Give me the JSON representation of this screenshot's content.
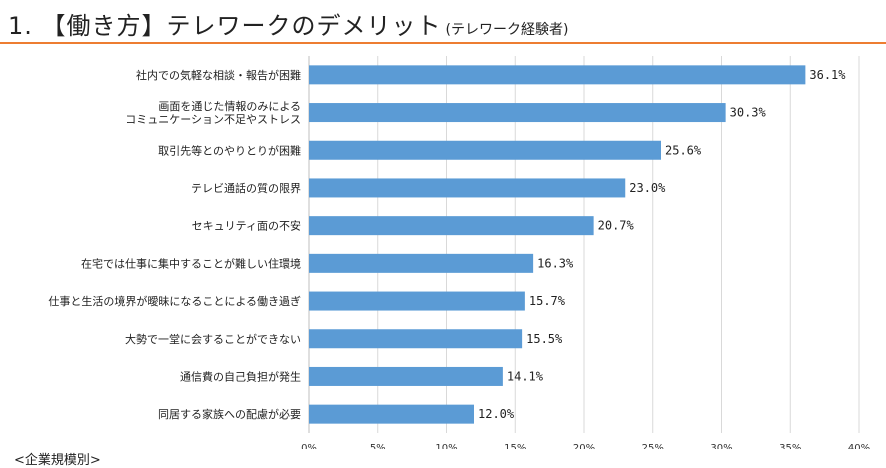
{
  "header": {
    "title": "1. 【働き方】テレワークのデメリット",
    "subtitle": "(テレワーク経験者)",
    "rule_color": "#ed7d31"
  },
  "footer": {
    "note": "<企業規模別>"
  },
  "chart_data": {
    "type": "bar",
    "orientation": "horizontal",
    "title": "",
    "xlabel": "",
    "ylabel": "",
    "xlim": [
      0,
      40
    ],
    "x_ticks": [
      0,
      5,
      10,
      15,
      20,
      25,
      30,
      35,
      40
    ],
    "x_tick_labels": [
      "0%",
      "5%",
      "10%",
      "15%",
      "20%",
      "25%",
      "30%",
      "35%",
      "40%"
    ],
    "grid": "vertical",
    "bar_color": "#5b9bd5",
    "categories": [
      [
        "社内での気軽な相談・報告が困難"
      ],
      [
        "画面を通じた情報のみによる",
        "コミュニケーション不足やストレス"
      ],
      [
        "取引先等とのやりとりが困難"
      ],
      [
        "テレビ通話の質の限界"
      ],
      [
        "セキュリティ面の不安"
      ],
      [
        "在宅では仕事に集中することが難しい住環境"
      ],
      [
        "仕事と生活の境界が曖昧になることによる働き過ぎ"
      ],
      [
        "大勢で一堂に会することができない"
      ],
      [
        "通信費の自己負担が発生"
      ],
      [
        "同居する家族への配慮が必要"
      ]
    ],
    "values": [
      36.1,
      30.3,
      25.6,
      23.0,
      20.7,
      16.3,
      15.7,
      15.5,
      14.1,
      12.0
    ],
    "value_labels": [
      "36.1%",
      "30.3%",
      "25.6%",
      "23.0%",
      "20.7%",
      "16.3%",
      "15.7%",
      "15.5%",
      "14.1%",
      "12.0%"
    ]
  }
}
